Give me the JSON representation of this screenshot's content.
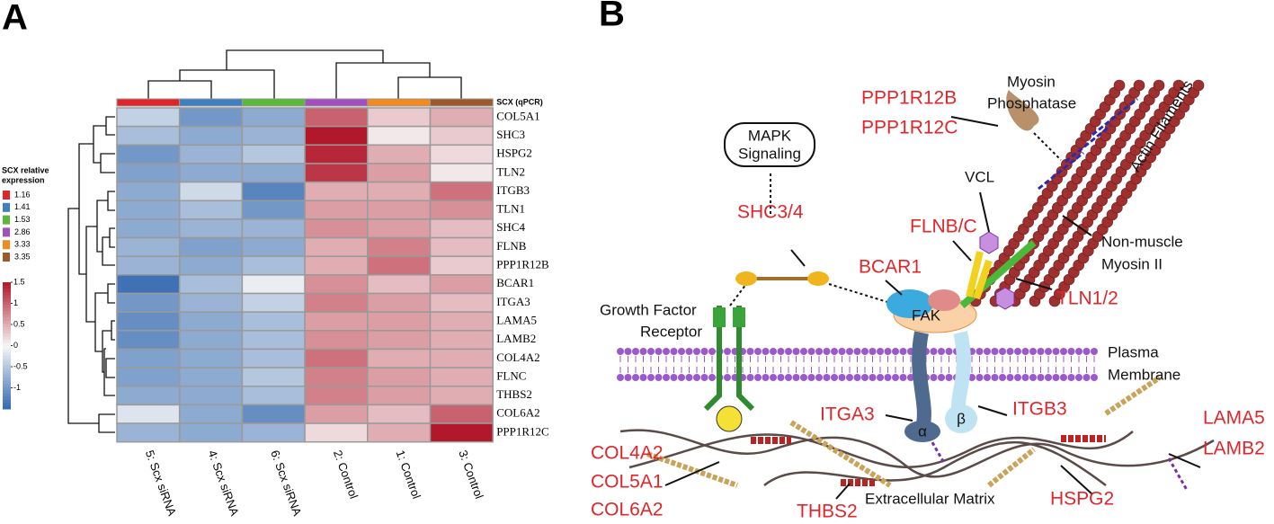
{
  "panel_labels": [
    "A",
    "B"
  ],
  "chart_data": {
    "type": "heatmap",
    "columns": [
      "5: Scx siRNA",
      "4: Scx siRNA",
      "6: Scx siRNA",
      "2: Control",
      "1: Control",
      "3: Control"
    ],
    "rows": [
      "COL5A1",
      "SHC3",
      "HSPG2",
      "TLN2",
      "ITGB3",
      "TLN1",
      "SHC4",
      "FLNB",
      "PPP1R12B",
      "BCAR1",
      "ITGA3",
      "LAMA5",
      "LAMB2",
      "COL4A2",
      "FLNC",
      "THBS2",
      "COL6A2",
      "PPP1R12C"
    ],
    "values": [
      [
        -0.4,
        -1.0,
        -0.8,
        1.0,
        0.3,
        0.5
      ],
      [
        -0.6,
        -0.8,
        -0.7,
        1.5,
        0.1,
        0.3
      ],
      [
        -1.0,
        -0.7,
        -0.5,
        1.4,
        0.5,
        0.2
      ],
      [
        -0.9,
        -0.8,
        -0.8,
        1.3,
        0.6,
        0.1
      ],
      [
        -0.8,
        -0.3,
        -1.2,
        0.5,
        0.5,
        0.9
      ],
      [
        -0.8,
        -0.6,
        -1.0,
        0.6,
        0.6,
        0.7
      ],
      [
        -0.8,
        -0.7,
        -0.7,
        0.7,
        0.6,
        0.4
      ],
      [
        -0.7,
        -0.9,
        -0.8,
        0.5,
        0.8,
        0.4
      ],
      [
        -0.7,
        -0.8,
        -0.6,
        0.5,
        0.9,
        0.3
      ],
      [
        -1.4,
        -0.6,
        -0.1,
        0.7,
        0.4,
        0.6
      ],
      [
        -1.0,
        -0.7,
        -0.4,
        0.8,
        0.6,
        0.4
      ],
      [
        -1.1,
        -0.8,
        -0.6,
        0.6,
        0.6,
        0.5
      ],
      [
        -1.1,
        -0.8,
        -0.6,
        0.7,
        0.6,
        0.5
      ],
      [
        -0.9,
        -0.8,
        -0.6,
        0.9,
        0.5,
        0.5
      ],
      [
        -0.9,
        -0.8,
        -0.5,
        0.8,
        0.6,
        0.5
      ],
      [
        -0.8,
        -0.8,
        -0.6,
        0.8,
        0.6,
        0.5
      ],
      [
        -0.2,
        -0.8,
        -1.1,
        0.6,
        0.4,
        1.0
      ],
      [
        -0.7,
        -0.8,
        -0.7,
        0.2,
        0.5,
        1.5
      ]
    ],
    "annotation": {
      "name": "SCX (qPCR)",
      "values": [
        1.16,
        1.41,
        1.53,
        2.86,
        3.33,
        3.35
      ],
      "colors": [
        "#e0262a",
        "#3f7fc0",
        "#5cb83a",
        "#a34fbf",
        "#f28a1e",
        "#9c5a2c"
      ]
    },
    "annotation_legend_title": [
      "SCX relative",
      "expression"
    ],
    "colorbar_lim": [
      -1.5,
      1.5
    ],
    "colorbar_ticks": [
      1.5,
      1,
      0.5,
      0,
      -0.5,
      -1
    ]
  },
  "diagram": {
    "myosin_phosphatase": [
      "Myosin",
      "Phosphatase"
    ],
    "ppp1r12b": "PPP1R12B",
    "ppp1r12c": "PPP1R12C",
    "mapk": [
      "MAPK",
      "Signaling"
    ],
    "shc34": "SHC3/4",
    "vcl": "VCL",
    "flnbc": "FLNB/C",
    "bcar1": "BCAR1",
    "tln12": "TLN1/2",
    "actin": "Actin Filaments",
    "nonmuscle": [
      "Non-muscle",
      "Myosin II"
    ],
    "gfr": [
      "Growth Factor",
      "Receptor"
    ],
    "fak": "FAK",
    "membrane": [
      "Plasma",
      "Membrane"
    ],
    "itga3": "ITGA3",
    "itgb3": "ITGB3",
    "alpha": "α",
    "beta": "β",
    "lama5": "LAMA5",
    "lamb2": "LAMB2",
    "col4a2": "COL4A2",
    "col5a1": "COL5A1",
    "col6a2": "COL6A2",
    "thbs2": "THBS2",
    "ecm": "Extracellular Matrix",
    "hspg2": "HSPG2"
  }
}
